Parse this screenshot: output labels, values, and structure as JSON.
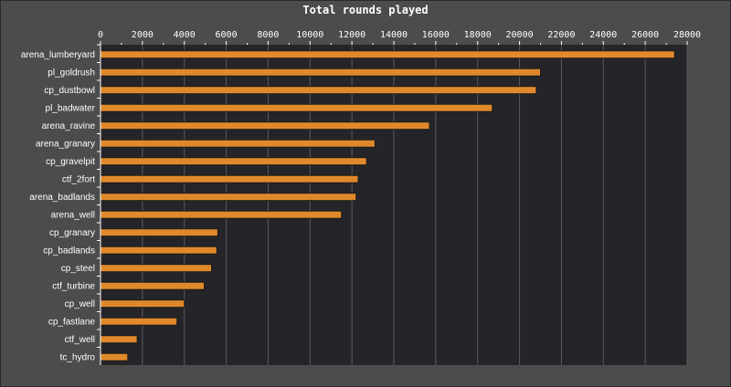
{
  "chart_data": {
    "type": "bar",
    "orientation": "horizontal",
    "title": "Total rounds played",
    "xlabel": "",
    "ylabel": "",
    "xlim": [
      0,
      28000
    ],
    "grid": true,
    "legend": "none",
    "x_ticks": [
      "0",
      "2000",
      "4000",
      "6000",
      "8000",
      "10000",
      "12000",
      "14000",
      "16000",
      "18000",
      "20000",
      "22000",
      "24000",
      "26000",
      "28000"
    ],
    "categories": [
      "arena_lumberyard",
      "pl_goldrush",
      "cp_dustbowl",
      "pl_badwater",
      "arena_ravine",
      "arena_granary",
      "cp_gravelpit",
      "ctf_2fort",
      "arena_badlands",
      "arena_well",
      "cp_granary",
      "cp_badlands",
      "cp_steel",
      "ctf_turbine",
      "cp_well",
      "cp_fastlane",
      "ctf_well",
      "tc_hydro"
    ],
    "values": [
      27400,
      21000,
      20800,
      18700,
      15700,
      13100,
      12700,
      12300,
      12200,
      11500,
      5600,
      5550,
      5300,
      4950,
      4000,
      3650,
      1750,
      1300
    ],
    "colors": {
      "bar": "#e0892c",
      "bar_edge": "#1a1a1a",
      "plot_bg": "#252529",
      "grid": "#5a5a5e",
      "page_bg": "#4c4c4c",
      "text": "#ffffff"
    }
  }
}
